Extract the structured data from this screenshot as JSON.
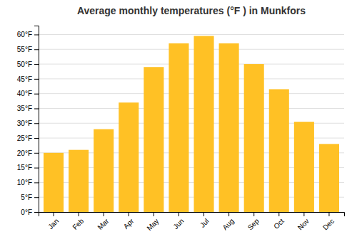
{
  "chart_data": {
    "type": "bar",
    "title": "Average monthly temperatures (°F ) in Munkfors",
    "categories": [
      "Jan",
      "Feb",
      "Mar",
      "Apr",
      "May",
      "Jun",
      "Jul",
      "Aug",
      "Sep",
      "Oct",
      "Nov",
      "Dec"
    ],
    "values": [
      20,
      21,
      28,
      37,
      49,
      57,
      59.5,
      57,
      50,
      41.5,
      30.5,
      23
    ],
    "color": "#FFC125",
    "ylim": [
      0,
      63
    ],
    "yticks": [
      {
        "value": 0,
        "label": "0°F"
      },
      {
        "value": 5,
        "label": "5°F"
      },
      {
        "value": 10,
        "label": "10°F"
      },
      {
        "value": 15,
        "label": "15°F"
      },
      {
        "value": 20,
        "label": "20°F"
      },
      {
        "value": 25,
        "label": "25°F"
      },
      {
        "value": 30,
        "label": "30°F"
      },
      {
        "value": 35,
        "label": "35°F"
      },
      {
        "value": 40,
        "label": "40°F"
      },
      {
        "value": 45,
        "label": "45°F"
      },
      {
        "value": 50,
        "label": "50°F"
      },
      {
        "value": 55,
        "label": "55°F"
      },
      {
        "value": 60,
        "label": "60°F"
      }
    ],
    "grid": true
  }
}
